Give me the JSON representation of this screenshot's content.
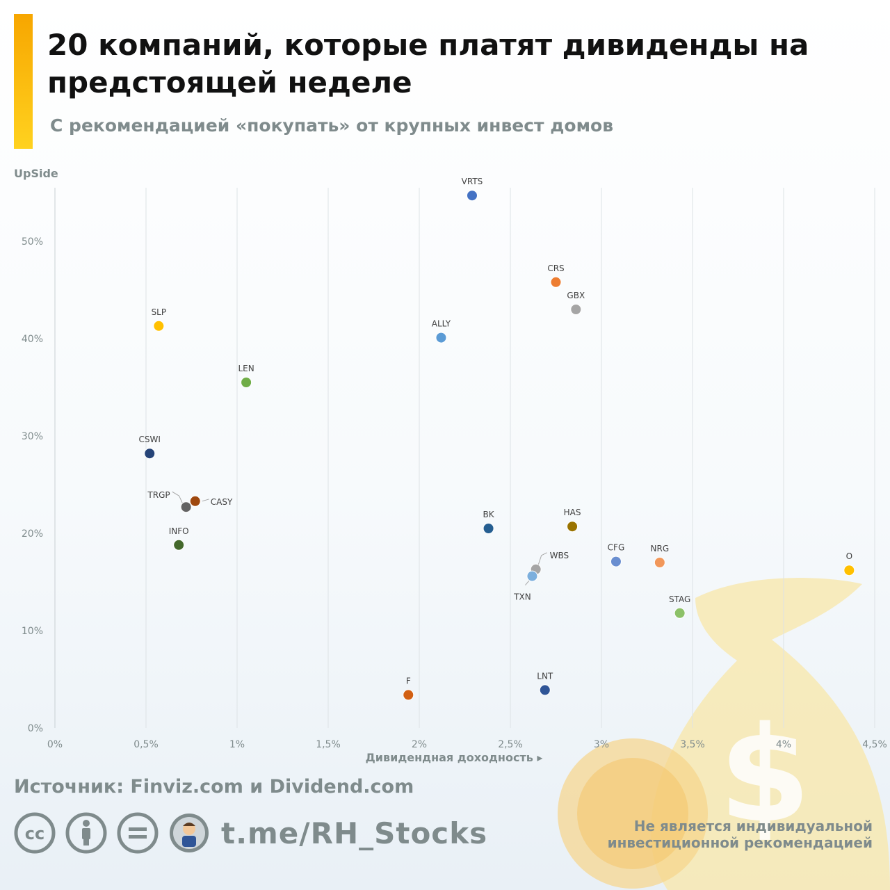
{
  "header": {
    "title": "20 компаний, которые платят дивиденды на предстоящей неделе",
    "subtitle": "С рекомендацией «покупать» от крупных инвест домов"
  },
  "chart_data": {
    "type": "scatter",
    "title": "20 компаний, которые платят дивиденды на предстоящей неделе",
    "xlabel": "Дивидендная доходность ▸",
    "ylabel": "UpSide",
    "xlim": [
      0,
      4.5
    ],
    "ylim": [
      0,
      55
    ],
    "x_ticks": [
      "0%",
      "0,5%",
      "1%",
      "1,5%",
      "2%",
      "2,5%",
      "3%",
      "3,5%",
      "4%",
      "4,5%"
    ],
    "y_ticks": [
      "0%",
      "10%",
      "20%",
      "30%",
      "40%",
      "50%"
    ],
    "grid": "vertical",
    "points": [
      {
        "ticker": "VRTS",
        "x": 2.29,
        "y": 54.7,
        "color": "#4472c4"
      },
      {
        "ticker": "CRS",
        "x": 2.75,
        "y": 45.8,
        "color": "#ed7d31"
      },
      {
        "ticker": "GBX",
        "x": 2.86,
        "y": 43.0,
        "color": "#a5a5a5"
      },
      {
        "ticker": "SLP",
        "x": 0.57,
        "y": 41.3,
        "color": "#ffc000"
      },
      {
        "ticker": "ALLY",
        "x": 2.12,
        "y": 40.1,
        "color": "#5b9bd5"
      },
      {
        "ticker": "LEN",
        "x": 1.05,
        "y": 35.5,
        "color": "#70ad47"
      },
      {
        "ticker": "CSWI",
        "x": 0.52,
        "y": 28.2,
        "color": "#264478"
      },
      {
        "ticker": "CASY",
        "x": 0.77,
        "y": 23.3,
        "color": "#9e480e"
      },
      {
        "ticker": "TRGP",
        "x": 0.72,
        "y": 22.7,
        "color": "#636363"
      },
      {
        "ticker": "INFO",
        "x": 0.68,
        "y": 18.8,
        "color": "#43682b"
      },
      {
        "ticker": "BK",
        "x": 2.38,
        "y": 20.5,
        "color": "#255e91"
      },
      {
        "ticker": "HAS",
        "x": 2.84,
        "y": 20.7,
        "color": "#997300"
      },
      {
        "ticker": "WBS",
        "x": 2.64,
        "y": 16.3,
        "color": "#a5a5a5"
      },
      {
        "ticker": "TXN",
        "x": 2.62,
        "y": 15.6,
        "color": "#7cafdd"
      },
      {
        "ticker": "CFG",
        "x": 3.08,
        "y": 17.1,
        "color": "#698ed0"
      },
      {
        "ticker": "NRG",
        "x": 3.32,
        "y": 17.0,
        "color": "#f1975a"
      },
      {
        "ticker": "O",
        "x": 4.36,
        "y": 16.2,
        "color": "#ffc000"
      },
      {
        "ticker": "STAG",
        "x": 3.43,
        "y": 11.8,
        "color": "#8cc168"
      },
      {
        "ticker": "F",
        "x": 1.94,
        "y": 3.4,
        "color": "#d15f12"
      },
      {
        "ticker": "LNT",
        "x": 2.69,
        "y": 3.9,
        "color": "#2f5597"
      }
    ]
  },
  "footer": {
    "source": "Источник: Finviz.com и Dividend.com",
    "channel": "t.me/RH_Stocks",
    "disclaimer_line1": "Не является индивидуальной",
    "disclaimer_line2": "инвестиционной рекомендацией",
    "icons": [
      "cc-icon",
      "attribution-icon",
      "no-derivatives-icon",
      "avatar"
    ]
  }
}
